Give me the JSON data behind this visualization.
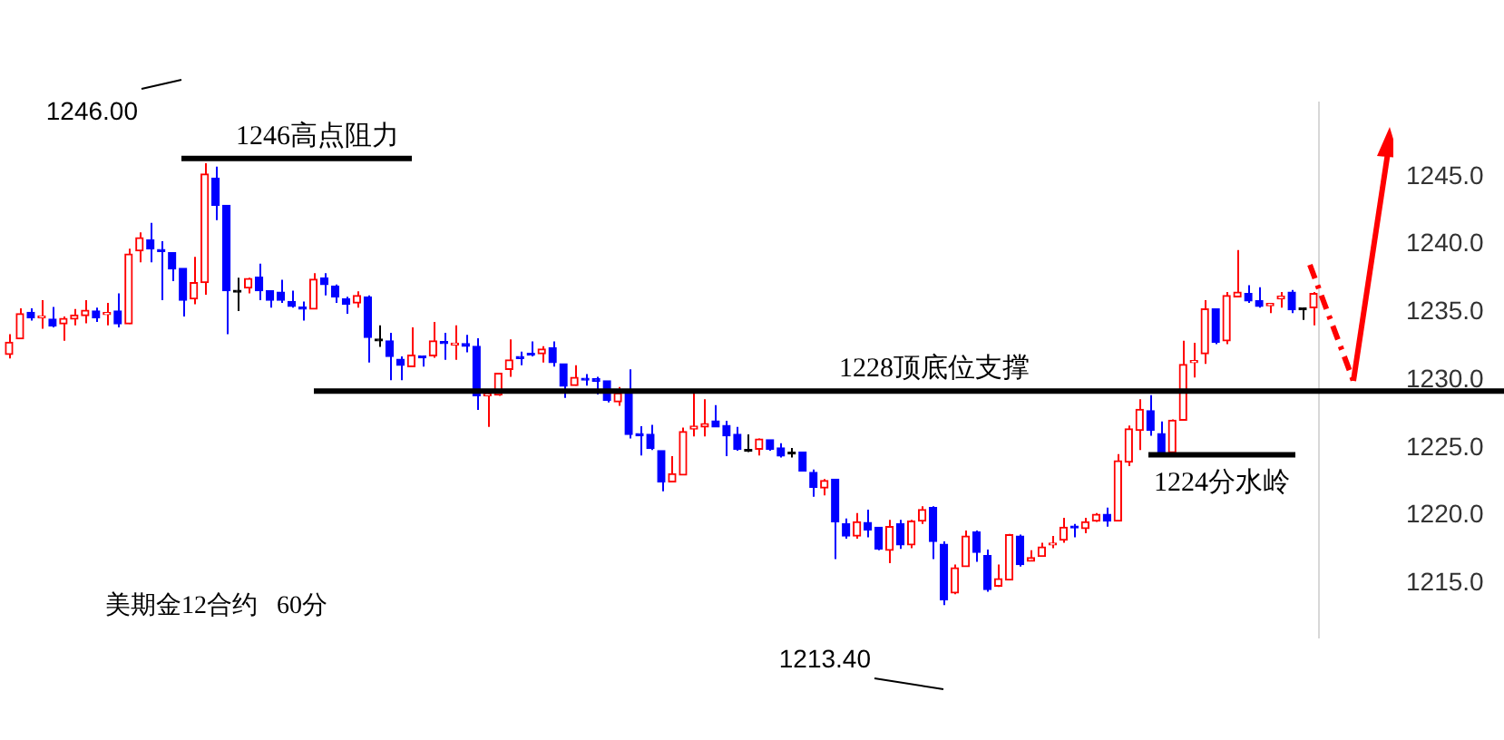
{
  "chart_data": {
    "type": "candlestick",
    "categories": [
      null,
      null,
      null,
      null,
      null,
      null,
      null,
      null,
      null,
      null,
      null,
      null,
      null,
      null,
      null,
      null,
      null,
      null,
      null,
      null,
      null,
      null,
      null,
      null,
      null,
      null,
      null,
      null,
      null,
      null,
      null,
      null,
      null,
      null,
      null,
      null,
      null,
      null,
      null,
      null,
      null,
      null,
      null,
      null,
      null,
      null,
      null,
      null,
      null,
      null,
      null,
      null,
      null,
      null,
      null,
      null,
      null,
      null,
      null,
      null,
      null,
      null,
      null,
      null,
      null,
      null,
      null,
      null,
      null,
      null,
      null,
      null,
      null,
      null,
      null,
      null,
      null,
      null,
      null,
      null,
      null,
      null,
      null,
      null,
      null,
      null,
      null,
      null,
      null,
      null,
      null,
      null,
      null,
      null,
      null,
      null,
      null,
      null,
      null,
      null,
      null,
      null,
      null,
      null,
      null,
      null,
      null,
      null,
      null,
      null,
      null,
      null,
      null,
      null,
      null,
      null,
      null,
      null,
      null,
      null,
      null
    ],
    "ohlc": [
      [
        1231.9,
        1233.4,
        1231.6,
        1232.8
      ],
      [
        1233.05,
        1235.3,
        1233.05,
        1234.9
      ],
      [
        1235.0,
        1235.3,
        1234.4,
        1234.6
      ],
      [
        1234.6,
        1235.9,
        1233.8,
        1234.7
      ],
      [
        1234.5,
        1235.4,
        1233.9,
        1234.0
      ],
      [
        1234.15,
        1234.7,
        1232.9,
        1234.55
      ],
      [
        1234.5,
        1235.25,
        1234.05,
        1234.8
      ],
      [
        1234.75,
        1235.9,
        1234.2,
        1235.15
      ],
      [
        1235.1,
        1235.35,
        1234.3,
        1234.6
      ],
      [
        1234.85,
        1235.7,
        1234.05,
        1234.9
      ],
      [
        1235.1,
        1236.4,
        1233.9,
        1234.15
      ],
      [
        1234.15,
        1239.7,
        1234.15,
        1239.3
      ],
      [
        1239.55,
        1240.9,
        1238.7,
        1240.5
      ],
      [
        1240.35,
        1241.6,
        1238.7,
        1239.7
      ],
      [
        1239.6,
        1240.25,
        1235.9,
        1239.5
      ],
      [
        1239.4,
        1239.4,
        1237.3,
        1238.2
      ],
      [
        1238.25,
        1238.25,
        1234.7,
        1235.9
      ],
      [
        1236.0,
        1239.1,
        1235.6,
        1237.2
      ],
      [
        1237.2,
        1246.0,
        1236.3,
        1245.2
      ],
      [
        1244.9,
        1245.75,
        1241.8,
        1242.9
      ],
      [
        1242.9,
        1242.9,
        1233.4,
        1236.6
      ],
      [
        1236.5,
        1237.55,
        1235.1,
        1236.5
      ],
      [
        1236.8,
        1237.55,
        1236.4,
        1237.5
      ],
      [
        1237.6,
        1238.6,
        1235.9,
        1236.6
      ],
      [
        1236.6,
        1236.6,
        1235.35,
        1235.9
      ],
      [
        1236.5,
        1237.4,
        1235.7,
        1235.9
      ],
      [
        1235.8,
        1236.6,
        1235.35,
        1235.45
      ],
      [
        1235.35,
        1235.8,
        1234.4,
        1235.25
      ],
      [
        1235.25,
        1237.9,
        1235.25,
        1237.45
      ],
      [
        1237.55,
        1237.9,
        1236.25,
        1237.05
      ],
      [
        1236.95,
        1237.05,
        1235.7,
        1236.15
      ],
      [
        1236.0,
        1236.15,
        1234.9,
        1235.6
      ],
      [
        1235.7,
        1236.55,
        1235.35,
        1236.25
      ],
      [
        1236.15,
        1236.25,
        1231.3,
        1233.15
      ],
      [
        1232.9,
        1234.05,
        1232.45,
        1232.9
      ],
      [
        1232.9,
        1233.5,
        1230.0,
        1231.75
      ],
      [
        1231.55,
        1231.75,
        1230.0,
        1231.1
      ],
      [
        1231.0,
        1233.9,
        1231.0,
        1231.85
      ],
      [
        1231.8,
        1231.8,
        1231.0,
        1231.65
      ],
      [
        1231.8,
        1234.3,
        1231.65,
        1232.9
      ],
      [
        1232.85,
        1233.5,
        1231.5,
        1232.7
      ],
      [
        1232.6,
        1234.05,
        1231.5,
        1232.65
      ],
      [
        1232.7,
        1233.35,
        1232.05,
        1232.5
      ],
      [
        1232.5,
        1233.1,
        1227.8,
        1228.85
      ],
      [
        1228.85,
        1229.3,
        1226.55,
        1228.95
      ],
      [
        1228.9,
        1230.55,
        1228.85,
        1230.5
      ],
      [
        1230.8,
        1233.0,
        1230.25,
        1231.5
      ],
      [
        1231.75,
        1232.1,
        1231.1,
        1231.6
      ],
      [
        1231.95,
        1232.85,
        1231.75,
        1231.85
      ],
      [
        1231.95,
        1232.5,
        1231.3,
        1232.3
      ],
      [
        1232.4,
        1232.85,
        1231.0,
        1231.3
      ],
      [
        1231.2,
        1231.2,
        1228.7,
        1229.55
      ],
      [
        1229.6,
        1231.1,
        1229.6,
        1230.2
      ],
      [
        1230.1,
        1230.45,
        1229.6,
        1230.0
      ],
      [
        1230.1,
        1230.25,
        1228.95,
        1229.9
      ],
      [
        1229.95,
        1229.95,
        1228.35,
        1228.5
      ],
      [
        1228.4,
        1229.5,
        1228.1,
        1229.05
      ],
      [
        1229.15,
        1230.8,
        1225.7,
        1226.0
      ],
      [
        1226.05,
        1226.6,
        1224.45,
        1225.9
      ],
      [
        1226.0,
        1226.7,
        1224.85,
        1224.95
      ],
      [
        1224.8,
        1224.8,
        1221.8,
        1222.5
      ],
      [
        1222.5,
        1224.4,
        1222.5,
        1223.1
      ],
      [
        1223.0,
        1226.5,
        1223.0,
        1226.2
      ],
      [
        1226.4,
        1229.1,
        1225.85,
        1226.6
      ],
      [
        1226.55,
        1228.6,
        1225.85,
        1226.8
      ],
      [
        1227.0,
        1228.15,
        1226.55,
        1226.55
      ],
      [
        1226.65,
        1227.0,
        1224.4,
        1225.9
      ],
      [
        1226.0,
        1226.55,
        1224.8,
        1224.9
      ],
      [
        1224.8,
        1226.0,
        1224.7,
        1224.75
      ],
      [
        1224.9,
        1225.7,
        1224.45,
        1225.65
      ],
      [
        1225.6,
        1225.6,
        1224.8,
        1224.9
      ],
      [
        1225.0,
        1225.35,
        1224.3,
        1224.4
      ],
      [
        1224.55,
        1225.0,
        1224.3,
        1224.55
      ],
      [
        1224.7,
        1224.7,
        1223.3,
        1223.3
      ],
      [
        1223.2,
        1223.4,
        1221.4,
        1222.1
      ],
      [
        1222.05,
        1222.7,
        1221.5,
        1222.6
      ],
      [
        1222.7,
        1222.7,
        1216.8,
        1219.55
      ],
      [
        1219.4,
        1219.8,
        1218.3,
        1218.5
      ],
      [
        1218.5,
        1220.2,
        1218.3,
        1219.55
      ],
      [
        1219.5,
        1220.45,
        1218.4,
        1218.95
      ],
      [
        1219.15,
        1219.15,
        1217.45,
        1217.55
      ],
      [
        1217.45,
        1219.7,
        1216.5,
        1219.2
      ],
      [
        1219.4,
        1219.7,
        1217.55,
        1217.85
      ],
      [
        1217.85,
        1219.7,
        1217.6,
        1219.6
      ],
      [
        1219.6,
        1220.7,
        1219.4,
        1220.45
      ],
      [
        1220.6,
        1220.7,
        1216.8,
        1218.1
      ],
      [
        1217.9,
        1218.1,
        1213.4,
        1213.8
      ],
      [
        1214.3,
        1216.4,
        1214.2,
        1216.15
      ],
      [
        1216.25,
        1218.9,
        1216.25,
        1218.5
      ],
      [
        1218.8,
        1218.9,
        1216.6,
        1217.3
      ],
      [
        1217.05,
        1217.5,
        1214.4,
        1214.55
      ],
      [
        1214.8,
        1216.4,
        1214.75,
        1215.35
      ],
      [
        1215.25,
        1218.65,
        1215.25,
        1218.6
      ],
      [
        1218.5,
        1218.6,
        1216.25,
        1216.4
      ],
      [
        1216.65,
        1217.45,
        1216.65,
        1216.9
      ],
      [
        1217.0,
        1218.0,
        1217.0,
        1217.7
      ],
      [
        1217.85,
        1218.5,
        1217.6,
        1217.9
      ],
      [
        1218.2,
        1219.85,
        1218.0,
        1219.15
      ],
      [
        1219.2,
        1219.4,
        1218.4,
        1219.1
      ],
      [
        1219.05,
        1219.85,
        1218.7,
        1219.55
      ],
      [
        1219.6,
        1220.2,
        1219.55,
        1220.1
      ],
      [
        1220.1,
        1220.6,
        1219.2,
        1219.6
      ],
      [
        1219.6,
        1224.55,
        1219.6,
        1224.05
      ],
      [
        1223.95,
        1226.65,
        1223.65,
        1226.4
      ],
      [
        1226.3,
        1228.6,
        1224.85,
        1227.85
      ],
      [
        1227.75,
        1228.9,
        1225.9,
        1226.3
      ],
      [
        1226.05,
        1226.95,
        1224.65,
        1224.65
      ],
      [
        1224.65,
        1227.1,
        1224.65,
        1227.05
      ],
      [
        1227.05,
        1232.9,
        1227.05,
        1231.15
      ],
      [
        1231.3,
        1232.75,
        1230.2,
        1231.4
      ],
      [
        1231.95,
        1235.9,
        1231.2,
        1235.25
      ],
      [
        1235.25,
        1235.25,
        1232.65,
        1232.8
      ],
      [
        1232.9,
        1236.5,
        1232.65,
        1236.25
      ],
      [
        1236.15,
        1239.6,
        1236.15,
        1236.5
      ],
      [
        1236.4,
        1237.0,
        1235.7,
        1235.85
      ],
      [
        1235.85,
        1236.85,
        1235.35,
        1235.45
      ],
      [
        1235.5,
        1235.65,
        1234.95,
        1235.65
      ],
      [
        1236.0,
        1236.5,
        1235.35,
        1236.2
      ],
      [
        1236.5,
        1236.65,
        1234.95,
        1235.2
      ],
      [
        1235.2,
        1235.35,
        1234.45,
        1235.2
      ],
      [
        1235.35,
        1236.5,
        1234.05,
        1236.4
      ]
    ],
    "colors": [
      "#ff0000",
      "#ff0000",
      "#0000ff",
      "#ff0000",
      "#0000ff",
      "#ff0000",
      "#ff0000",
      "#ff0000",
      "#0000ff",
      "#ff0000",
      "#0000ff",
      "#ff0000",
      "#ff0000",
      "#0000ff",
      "#0000ff",
      "#0000ff",
      "#0000ff",
      "#ff0000",
      "#ff0000",
      "#0000ff",
      "#0000ff",
      "#000000",
      "#ff0000",
      "#0000ff",
      "#0000ff",
      "#0000ff",
      "#0000ff",
      "#0000ff",
      "#ff0000",
      "#0000ff",
      "#0000ff",
      "#0000ff",
      "#ff0000",
      "#0000ff",
      "#000000",
      "#0000ff",
      "#0000ff",
      "#ff0000",
      "#0000ff",
      "#ff0000",
      "#0000ff",
      "#ff0000",
      "#0000ff",
      "#0000ff",
      "#ff0000",
      "#ff0000",
      "#ff0000",
      "#0000ff",
      "#0000ff",
      "#ff0000",
      "#0000ff",
      "#0000ff",
      "#ff0000",
      "#0000ff",
      "#0000ff",
      "#0000ff",
      "#ff0000",
      "#0000ff",
      "#0000ff",
      "#0000ff",
      "#0000ff",
      "#ff0000",
      "#ff0000",
      "#ff0000",
      "#ff0000",
      "#0000ff",
      "#0000ff",
      "#0000ff",
      "#000000",
      "#ff0000",
      "#0000ff",
      "#0000ff",
      "#000000",
      "#0000ff",
      "#0000ff",
      "#ff0000",
      "#0000ff",
      "#0000ff",
      "#ff0000",
      "#0000ff",
      "#0000ff",
      "#ff0000",
      "#0000ff",
      "#ff0000",
      "#ff0000",
      "#0000ff",
      "#0000ff",
      "#ff0000",
      "#ff0000",
      "#0000ff",
      "#0000ff",
      "#ff0000",
      "#ff0000",
      "#0000ff",
      "#ff0000",
      "#ff0000",
      "#ff0000",
      "#ff0000",
      "#0000ff",
      "#ff0000",
      "#ff0000",
      "#0000ff",
      "#ff0000",
      "#ff0000",
      "#ff0000",
      "#0000ff",
      "#0000ff",
      "#ff0000",
      "#ff0000",
      "#ff0000",
      "#ff0000",
      "#0000ff",
      "#ff0000",
      "#ff0000",
      "#0000ff",
      "#0000ff",
      "#ff0000",
      "#ff0000",
      "#0000ff",
      "#000000",
      "#ff0000"
    ],
    "ylim": [
      1211,
      1250.5
    ],
    "yticks": [
      {
        "value": 1215,
        "label": "1215.0"
      },
      {
        "value": 1220,
        "label": "1220.0"
      },
      {
        "value": 1225,
        "label": "1225.0"
      },
      {
        "value": 1230,
        "label": "1230.0"
      },
      {
        "value": 1235,
        "label": "1235.0"
      },
      {
        "value": 1240,
        "label": "1240.0"
      },
      {
        "value": 1245,
        "label": "1245.0"
      }
    ],
    "tick_labels": "y",
    "grid": false,
    "legend": false,
    "ref_lines": [
      {
        "axis": "y",
        "value": 1229.2,
        "label": "1228顶底位支撑",
        "color": "#000000"
      },
      {
        "axis": "y",
        "value": 1246.35,
        "label": "1246高点阻力",
        "color": "#000000"
      },
      {
        "axis": "y",
        "value": 1224.5,
        "label": "1224分水岭",
        "color": "#000000"
      }
    ],
    "annotations": [
      "1246.00",
      "1213.40",
      "美期金12合约   60分"
    ]
  }
}
